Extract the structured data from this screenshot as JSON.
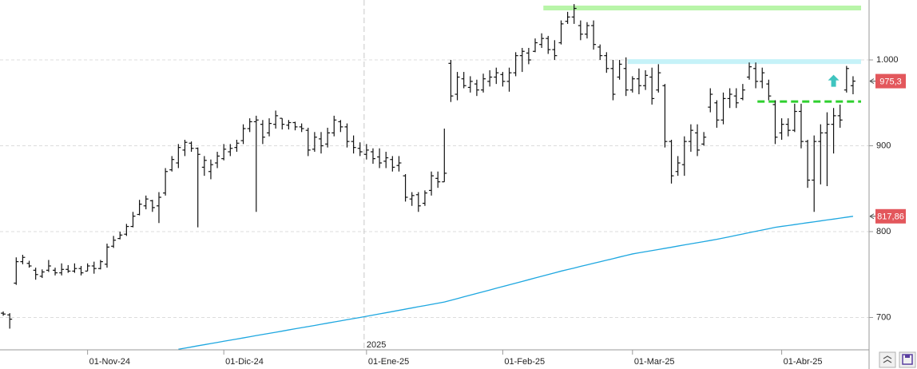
{
  "chart_data": {
    "type": "ohlc",
    "categories": [
      null,
      null,
      null,
      null,
      null,
      null,
      null,
      null,
      null,
      null,
      null,
      null,
      null,
      "01-Nov-24",
      null,
      null,
      null,
      null,
      null,
      null,
      null,
      null,
      null,
      null,
      null,
      null,
      null,
      null,
      null,
      null,
      null,
      null,
      null,
      null,
      "01-Dic-24",
      null,
      null,
      null,
      null,
      null,
      null,
      null,
      null,
      null,
      null,
      null,
      null,
      null,
      null,
      null,
      null,
      null,
      null,
      null,
      null,
      null,
      "01-Ene-25",
      null,
      null,
      null,
      null,
      null,
      null,
      null,
      null,
      null,
      null,
      null,
      null,
      null,
      null,
      null,
      null,
      null,
      null,
      null,
      null,
      "01-Feb-25",
      null,
      null,
      null,
      null,
      null,
      null,
      null,
      null,
      null,
      null,
      null,
      null,
      null,
      null,
      null,
      null,
      null,
      null,
      null,
      "01-Mar-25",
      null,
      null,
      null,
      null,
      null,
      null,
      null,
      null,
      null,
      null,
      null,
      null,
      null,
      null,
      null,
      null,
      null,
      null,
      null,
      null,
      null,
      null,
      "01-Abr-25",
      null,
      null,
      null,
      null,
      null,
      null,
      null,
      null,
      null,
      null,
      null
    ],
    "open": [
      705,
      703,
      740,
      765,
      763,
      755,
      748,
      755,
      755,
      752,
      756,
      754,
      757,
      754,
      760,
      757,
      762,
      783,
      792,
      797,
      806,
      820,
      830,
      836,
      830,
      845,
      872,
      880,
      895,
      903,
      897,
      875,
      870,
      880,
      885,
      893,
      898,
      906,
      920,
      928,
      925,
      915,
      925,
      932,
      924,
      927,
      922,
      918,
      896,
      908,
      902,
      915,
      928,
      922,
      905,
      897,
      890,
      893,
      887,
      882,
      884,
      877,
      865,
      838,
      843,
      833,
      848,
      862,
      858,
      996,
      960,
      978,
      968,
      972,
      965,
      975,
      980,
      983,
      975,
      985,
      1005,
      1008,
      1010,
      1018,
      1025,
      1012,
      1020,
      1045,
      1050,
      1040,
      1030,
      1040,
      1015,
      1005,
      990,
      980,
      990,
      965,
      978,
      970,
      980,
      965,
      970,
      905,
      870,
      878,
      905,
      915,
      902,
      945,
      950,
      930,
      955,
      958,
      955,
      980,
      990,
      975,
      972,
      948,
      915,
      925,
      918,
      940,
      905,
      860,
      905,
      915,
      925,
      935,
      965,
      970
    ],
    "high": [
      707,
      705,
      770,
      773,
      766,
      758,
      756,
      767,
      758,
      763,
      761,
      763,
      760,
      763,
      765,
      767,
      786,
      795,
      800,
      809,
      823,
      837,
      842,
      837,
      846,
      874,
      888,
      902,
      907,
      905,
      898,
      888,
      884,
      893,
      902,
      902,
      907,
      925,
      932,
      935,
      930,
      932,
      941,
      932,
      930,
      928,
      926,
      921,
      916,
      916,
      921,
      935,
      930,
      926,
      912,
      904,
      902,
      897,
      897,
      893,
      888,
      888,
      867,
      846,
      846,
      848,
      870,
      870,
      920,
      1000,
      986,
      986,
      981,
      977,
      984,
      988,
      991,
      986,
      991,
      1009,
      1014,
      1014,
      1025,
      1031,
      1028,
      1023,
      1046,
      1056,
      1065,
      1046,
      1044,
      1046,
      1018,
      1009,
      1000,
      1000,
      1003,
      981,
      990,
      988,
      991,
      995,
      972,
      907,
      888,
      911,
      925,
      925,
      916,
      967,
      953,
      962,
      967,
      967,
      972,
      997,
      997,
      991,
      977,
      953,
      932,
      932,
      949,
      949,
      907,
      912,
      925,
      939,
      944,
      948,
      993,
      981
    ],
    "low": [
      702,
      687,
      738,
      762,
      758,
      744,
      746,
      753,
      749,
      749,
      752,
      752,
      749,
      754,
      751,
      756,
      758,
      781,
      791,
      795,
      805,
      819,
      826,
      823,
      810,
      842,
      870,
      874,
      888,
      893,
      805,
      865,
      861,
      874,
      883,
      888,
      893,
      902,
      916,
      823,
      902,
      911,
      920,
      919,
      919,
      918,
      916,
      888,
      893,
      891,
      898,
      911,
      916,
      898,
      891,
      888,
      884,
      879,
      874,
      874,
      870,
      870,
      835,
      830,
      823,
      830,
      842,
      851,
      858,
      951,
      953,
      967,
      962,
      958,
      962,
      969,
      972,
      969,
      963,
      981,
      986,
      995,
      1009,
      1014,
      1007,
      1000,
      1018,
      1042,
      1042,
      1023,
      1025,
      1012,
      1000,
      985,
      953,
      977,
      958,
      962,
      960,
      965,
      948,
      962,
      898,
      856,
      865,
      865,
      893,
      888,
      900,
      939,
      921,
      925,
      944,
      944,
      953,
      977,
      967,
      967,
      953,
      902,
      907,
      911,
      916,
      897,
      851,
      823,
      855,
      853,
      891,
      921,
      962,
      960
    ],
    "close": [
      704,
      698,
      765,
      770,
      760,
      750,
      753,
      760,
      752,
      756,
      754,
      757,
      752,
      760,
      757,
      765,
      782,
      790,
      796,
      806,
      818,
      832,
      838,
      828,
      840,
      870,
      884,
      898,
      904,
      897,
      890,
      883,
      878,
      888,
      896,
      897,
      903,
      920,
      928,
      930,
      910,
      926,
      935,
      925,
      927,
      922,
      920,
      895,
      910,
      900,
      915,
      930,
      922,
      905,
      898,
      893,
      895,
      885,
      880,
      886,
      875,
      880,
      840,
      842,
      830,
      845,
      865,
      858,
      868,
      958,
      980,
      970,
      975,
      965,
      978,
      980,
      985,
      975,
      985,
      1005,
      1010,
      1000,
      1020,
      1025,
      1012,
      1005,
      1042,
      1050,
      1060,
      1030,
      1040,
      1018,
      1005,
      990,
      960,
      995,
      965,
      978,
      970,
      982,
      955,
      985,
      905,
      865,
      880,
      905,
      918,
      895,
      910,
      960,
      930,
      955,
      960,
      950,
      965,
      992,
      975,
      985,
      958,
      910,
      925,
      918,
      940,
      905,
      860,
      905,
      915,
      925,
      935,
      930,
      990,
      975.3
    ],
    "bar_color": "#111111",
    "moving_average": {
      "color": "#1ea7e0",
      "values": [
        null,
        null,
        null,
        null,
        null,
        null,
        null,
        null,
        null,
        null,
        null,
        null,
        null,
        null,
        null,
        null,
        null,
        null,
        null,
        null,
        null,
        null,
        null,
        null,
        null,
        null,
        null,
        663,
        664.3,
        665.6,
        667,
        668.3,
        669.6,
        670.9,
        672.3,
        673.6,
        674.9,
        676.2,
        677.5,
        678.9,
        680.2,
        681.5,
        682.8,
        684.1,
        685.5,
        686.8,
        688.1,
        689.4,
        690.7,
        692.1,
        693.4,
        694.7,
        696,
        697.4,
        698.7,
        700,
        701.4,
        702.8,
        704.2,
        705.5,
        706.9,
        708.3,
        709.7,
        711.1,
        712.5,
        713.8,
        715.2,
        716.6,
        718,
        720,
        722,
        724,
        726,
        728,
        730,
        732,
        734,
        736,
        738,
        740,
        742,
        744,
        746,
        748,
        750,
        752,
        754,
        755.8,
        757.6,
        759.5,
        761.3,
        763.1,
        764.9,
        766.7,
        768.5,
        770.4,
        772.2,
        774,
        775.3,
        776.6,
        777.9,
        779.2,
        780.5,
        781.8,
        783.2,
        784.5,
        785.8,
        787.1,
        788.4,
        789.7,
        791,
        792.6,
        794.1,
        795.7,
        797.2,
        798.8,
        800.3,
        801.9,
        803.4,
        805,
        806.1,
        807.1,
        808.2,
        809.3,
        810.4,
        811.4,
        812.5,
        813.6,
        814.6,
        815.7,
        816.8,
        817.86
      ]
    },
    "levels": [
      {
        "value": 1060.5,
        "color": "#b8f5a8",
        "style": "solid"
      },
      {
        "value": 998,
        "color": "#c6f2f8",
        "style": "solid"
      },
      {
        "value": 951.5,
        "color": "#2fcf2f",
        "style": "dashed"
      }
    ],
    "price_labels": [
      {
        "value": 975.3,
        "label": "975,3",
        "color": "#e3575c"
      },
      {
        "value": 817.86,
        "label": "817,86",
        "color": "#e3575c"
      }
    ],
    "annotations": [
      "2025"
    ],
    "ylim": [
      662.3,
      1069.8
    ],
    "yticks": [
      700,
      800,
      900,
      {
        "value": 1000,
        "label": "1.000"
      }
    ],
    "grid": true
  }
}
